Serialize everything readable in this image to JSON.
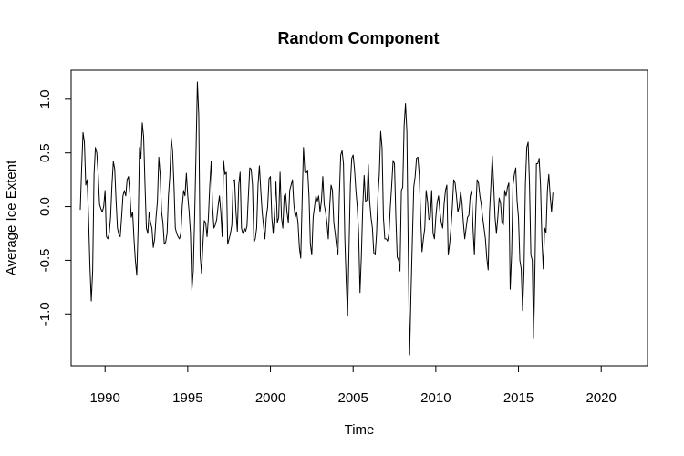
{
  "chart_data": {
    "type": "line",
    "title": "Random Component",
    "xlabel": "Time",
    "ylabel": "Average Ice Extent",
    "xlim": [
      1988.5,
      2022.25
    ],
    "ylim": [
      -1.38,
      1.16
    ],
    "grid": false,
    "x_ticks": [
      1990,
      1995,
      2000,
      2005,
      2010,
      2015,
      2020
    ],
    "x_tick_labels": [
      "1990",
      "1995",
      "2000",
      "2005",
      "2010",
      "2015",
      "2020"
    ],
    "y_ticks": [
      -1.0,
      -0.5,
      0.0,
      0.5,
      1.0
    ],
    "y_tick_labels": [
      "-1.0",
      "-0.5",
      "0.0",
      "0.5",
      "1.0"
    ],
    "series": [
      {
        "color": "#000000",
        "x_start": 1988.5,
        "x_step": 0.083333,
        "values": [
          -0.03,
          0.35,
          0.69,
          0.6,
          0.2,
          0.25,
          -0.1,
          -0.55,
          -0.88,
          -0.6,
          0.3,
          0.55,
          0.5,
          0.3,
          0.02,
          -0.02,
          -0.05,
          0.0,
          0.15,
          -0.28,
          -0.3,
          -0.25,
          -0.1,
          0.2,
          0.42,
          0.35,
          0.05,
          -0.2,
          -0.26,
          -0.28,
          -0.1,
          0.1,
          0.15,
          0.1,
          0.25,
          0.28,
          0.12,
          -0.1,
          -0.05,
          -0.3,
          -0.5,
          -0.64,
          -0.2,
          0.55,
          0.45,
          0.78,
          0.65,
          0.2,
          -0.2,
          -0.25,
          -0.05,
          -0.15,
          -0.2,
          -0.38,
          -0.3,
          -0.1,
          0.05,
          0.46,
          0.3,
          -0.05,
          -0.15,
          -0.35,
          -0.33,
          -0.25,
          0.1,
          0.28,
          0.64,
          0.52,
          0.2,
          -0.2,
          -0.25,
          -0.28,
          -0.3,
          -0.25,
          0.0,
          0.15,
          0.1,
          0.31,
          0.1,
          -0.05,
          -0.25,
          -0.78,
          -0.6,
          -0.1,
          0.5,
          1.16,
          0.85,
          -0.45,
          -0.62,
          -0.35,
          -0.13,
          -0.15,
          -0.28,
          -0.1,
          0.2,
          0.42,
          0.0,
          -0.2,
          -0.17,
          -0.12,
          0.0,
          0.1,
          -0.05,
          -0.28,
          0.43,
          0.3,
          0.32,
          -0.35,
          -0.3,
          -0.25,
          -0.17,
          0.24,
          0.25,
          -0.05,
          -0.23,
          0.2,
          0.32,
          -0.2,
          -0.25,
          -0.2,
          -0.23,
          -0.18,
          0.1,
          0.36,
          0.35,
          0.2,
          -0.33,
          -0.3,
          -0.2,
          0.2,
          0.38,
          0.15,
          -0.05,
          -0.18,
          -0.3,
          -0.1,
          0.0,
          0.26,
          0.28,
          -0.1,
          -0.25,
          -0.05,
          0.23,
          -0.15,
          -0.1,
          0.32,
          -0.1,
          -0.2,
          0.1,
          0.12,
          -0.05,
          -0.15,
          0.15,
          0.2,
          0.25,
          0.02,
          -0.1,
          -0.05,
          -0.15,
          -0.38,
          -0.48,
          0.05,
          0.55,
          0.32,
          0.31,
          0.34,
          0.1,
          -0.35,
          -0.45,
          -0.1,
          0.0,
          0.1,
          0.05,
          0.1,
          -0.05,
          0.05,
          0.28,
          0.02,
          -0.05,
          -0.15,
          -0.3,
          0.0,
          0.2,
          0.15,
          -0.15,
          -0.25,
          -0.37,
          -0.45,
          0.1,
          0.48,
          0.52,
          0.4,
          -0.3,
          -0.7,
          -1.02,
          -0.4,
          0.2,
          0.45,
          0.48,
          0.35,
          0.15,
          0.0,
          -0.25,
          -0.8,
          -0.45,
          0.0,
          0.29,
          0.05,
          0.06,
          0.39,
          0.05,
          -0.1,
          -0.2,
          -0.43,
          -0.45,
          -0.25,
          0.1,
          0.3,
          0.7,
          0.55,
          -0.1,
          -0.3,
          -0.3,
          -0.32,
          -0.25,
          0.0,
          0.2,
          0.43,
          0.4,
          -0.1,
          -0.47,
          -0.5,
          -0.6,
          0.15,
          0.18,
          0.75,
          0.96,
          0.7,
          -0.4,
          -1.38,
          -0.8,
          -0.3,
          0.18,
          0.28,
          0.45,
          0.46,
          0.3,
          -0.1,
          -0.42,
          -0.3,
          -0.2,
          0.15,
          0.05,
          -0.12,
          -0.1,
          0.15,
          -0.25,
          -0.3,
          -0.1,
          0.04,
          0.1,
          -0.05,
          -0.15,
          -0.2,
          0.02,
          0.15,
          0.2,
          -0.45,
          -0.35,
          -0.2,
          0.0,
          0.25,
          0.22,
          0.1,
          -0.05,
          0.0,
          0.14,
          0.04,
          -0.15,
          -0.3,
          -0.2,
          -0.1,
          -0.08,
          0.1,
          0.15,
          -0.2,
          -0.45,
          -0.05,
          0.25,
          0.22,
          0.1,
          0.02,
          -0.1,
          -0.2,
          -0.3,
          -0.48,
          -0.59,
          -0.05,
          0.2,
          0.47,
          0.2,
          -0.1,
          -0.25,
          -0.1,
          0.08,
          0.03,
          -0.15,
          -0.17,
          0.15,
          0.1,
          0.18,
          0.22,
          -0.77,
          -0.45,
          0.2,
          0.3,
          0.36,
          0.05,
          -0.1,
          -0.5,
          -0.58,
          -0.97,
          -0.6,
          0.2,
          0.55,
          0.6,
          0.2,
          -0.45,
          -0.5,
          -1.23,
          -0.55,
          0.4,
          0.4,
          0.45,
          0.2,
          -0.3,
          -0.58,
          -0.2,
          -0.24,
          0.15,
          0.3,
          0.1,
          -0.05,
          0.13
        ]
      }
    ]
  }
}
